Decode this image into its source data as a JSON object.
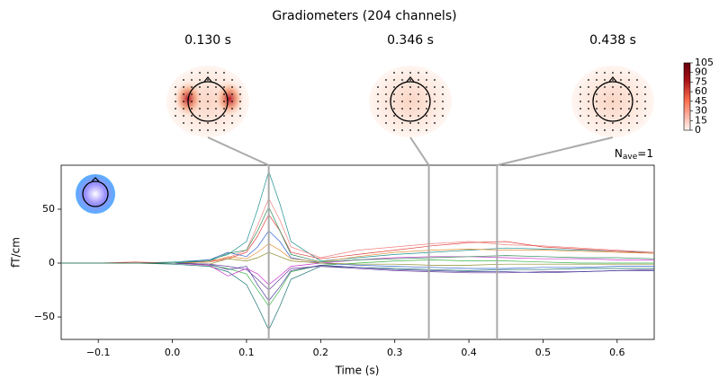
{
  "chart_data": {
    "type": "line",
    "title": "Gradiometers (204 channels)",
    "topomap_titles": [
      "0.130 s",
      "0.346 s",
      "0.438 s"
    ],
    "markers": [
      0.13,
      0.346,
      0.438
    ],
    "xlabel": "Time (s)",
    "ylabel": "fT/cm",
    "nave": {
      "symbol": "N",
      "subscript": "ave",
      "text": "=1"
    },
    "xlim": [
      -0.15,
      0.65
    ],
    "xticks": [
      {
        "value": -0.1,
        "label": "−0.1"
      },
      {
        "value": 0,
        "label": "0.0"
      },
      0.1,
      0.2,
      0.3,
      0.4,
      0.5,
      0.6
    ],
    "ylim": [
      -70.8,
      90.8
    ],
    "yticks": [
      {
        "value": -50,
        "label": "−50"
      },
      0,
      50
    ],
    "colorbar": {
      "lim": [
        0,
        105
      ],
      "ticks": [
        0,
        15,
        30,
        45,
        60,
        75,
        90,
        105
      ]
    },
    "x": [
      -0.15,
      -0.1,
      -0.05,
      0,
      0.05,
      0.075,
      0.1,
      0.115,
      0.13,
      0.145,
      0.16,
      0.2,
      0.25,
      0.3,
      0.35,
      0.4,
      0.45,
      0.5,
      0.55,
      0.6,
      0.65
    ],
    "series": [
      {
        "color": "#1f8f8f",
        "values": [
          0,
          0,
          0,
          1,
          3,
          8,
          20,
          50,
          85,
          55,
          20,
          2,
          5,
          8,
          10,
          12,
          14,
          13,
          12,
          11,
          10
        ]
      },
      {
        "color": "#17706f",
        "values": [
          0,
          0,
          0,
          -1,
          -3,
          -8,
          -20,
          -40,
          -62,
          -40,
          -15,
          -3,
          -4,
          -5,
          -6,
          -7,
          -6,
          -6,
          -5,
          -5,
          -5
        ]
      },
      {
        "color": "#f08080",
        "values": [
          0,
          0,
          0,
          0,
          2,
          5,
          12,
          35,
          60,
          40,
          15,
          5,
          12,
          15,
          18,
          20,
          17,
          16,
          14,
          12,
          10
        ]
      },
      {
        "color": "#e0403a",
        "values": [
          0,
          0,
          1,
          0,
          1,
          4,
          10,
          25,
          45,
          30,
          10,
          4,
          8,
          12,
          16,
          19,
          20,
          15,
          13,
          11,
          9
        ]
      },
      {
        "color": "#3cb44b",
        "values": [
          0,
          0,
          0,
          0,
          -2,
          -5,
          -10,
          -25,
          -40,
          -25,
          -8,
          -2,
          0,
          2,
          3,
          2,
          2,
          1,
          0,
          0,
          0
        ]
      },
      {
        "color": "#6a3d9a",
        "values": [
          0,
          0,
          0,
          0,
          -1,
          -3,
          -6,
          -15,
          -25,
          -15,
          -5,
          -3,
          -5,
          -7,
          -8,
          -9,
          -9,
          -8,
          -8,
          -7,
          -6
        ]
      },
      {
        "color": "#3366cc",
        "values": [
          0,
          0,
          0,
          0,
          3,
          10,
          6,
          15,
          30,
          20,
          5,
          0,
          -2,
          -3,
          -4,
          -5,
          -5,
          -4,
          -4,
          -3,
          -3
        ]
      },
      {
        "color": "#cc33cc",
        "values": [
          0,
          0,
          0,
          0,
          -2,
          -12,
          -5,
          -10,
          -20,
          -12,
          -3,
          0,
          3,
          5,
          6,
          6,
          5,
          4,
          4,
          3,
          3
        ]
      },
      {
        "color": "#e69138",
        "values": [
          0,
          0,
          0,
          0,
          1,
          6,
          4,
          10,
          18,
          12,
          4,
          1,
          6,
          10,
          12,
          13,
          12,
          12,
          11,
          10,
          9
        ]
      },
      {
        "color": "#8c8c2c",
        "values": [
          0,
          0,
          0,
          0,
          -1,
          4,
          2,
          5,
          10,
          6,
          2,
          0,
          -1,
          -1,
          -2,
          -2,
          -1,
          -1,
          -1,
          -1,
          -1
        ]
      },
      {
        "color": "#4b3fa0",
        "values": [
          0,
          0,
          0,
          0,
          -1,
          -6,
          -3,
          -20,
          -35,
          -22,
          -7,
          -2,
          -4,
          -6,
          -7,
          -8,
          -8,
          -9,
          -8,
          -7,
          -7
        ]
      },
      {
        "color": "#2e8b57",
        "values": [
          0,
          0,
          0,
          0,
          2,
          9,
          12,
          30,
          52,
          30,
          8,
          1,
          3,
          4,
          5,
          6,
          7,
          6,
          5,
          5,
          4
        ]
      }
    ]
  }
}
